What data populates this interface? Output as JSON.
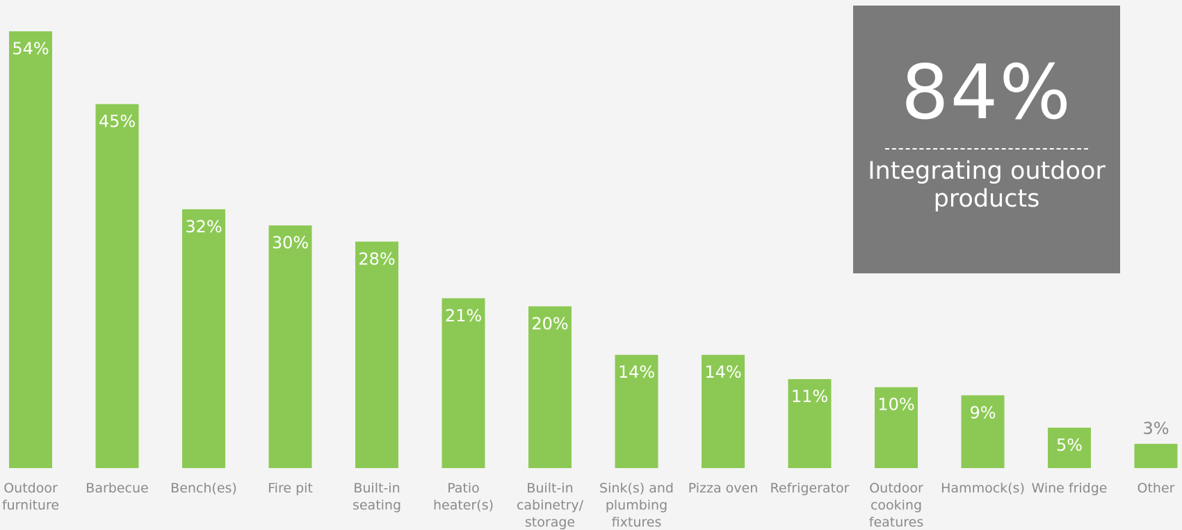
{
  "chart_data": {
    "type": "bar",
    "categories": [
      "Outdoor furniture",
      "Barbecue",
      "Bench(es)",
      "Fire pit",
      "Built-in seating",
      "Patio heater(s)",
      "Built-in cabinetry/ storage",
      "Sink(s) and plumbing fixtures",
      "Pizza oven",
      "Refrigerator",
      "Outdoor cooking features",
      "Hammock(s)",
      "Wine fridge",
      "Other"
    ],
    "category_lines": [
      [
        "Outdoor",
        "furniture"
      ],
      [
        "Barbecue"
      ],
      [
        "Bench(es)"
      ],
      [
        "Fire pit"
      ],
      [
        "Built-in",
        "seating"
      ],
      [
        "Patio",
        "heater(s)"
      ],
      [
        "Built-in",
        "cabinetry/",
        "storage"
      ],
      [
        "Sink(s) and",
        "plumbing",
        "fixtures"
      ],
      [
        "Pizza oven"
      ],
      [
        "Refrigerator"
      ],
      [
        "Outdoor",
        "cooking",
        "features"
      ],
      [
        "Hammock(s)"
      ],
      [
        "Wine fridge"
      ],
      [
        "Other"
      ]
    ],
    "values": [
      54,
      45,
      32,
      30,
      28,
      21,
      20,
      14,
      14,
      11,
      10,
      9,
      5,
      3
    ],
    "value_labels": [
      "54%",
      "45%",
      "32%",
      "30%",
      "28%",
      "21%",
      "20%",
      "14%",
      "14%",
      "11%",
      "10%",
      "9%",
      "5%",
      "3%"
    ],
    "ylim": [
      0,
      54
    ],
    "grid": false,
    "bar_color": "#8cc954",
    "label_inside_color": "#ffffff",
    "label_outside_color": "#8a8a8a",
    "category_label_color": "#8a8a8a"
  },
  "callout": {
    "value": "84%",
    "label_line1": "Integrating outdoor",
    "label_line2": "products",
    "background_color": "#7a7a7a"
  }
}
